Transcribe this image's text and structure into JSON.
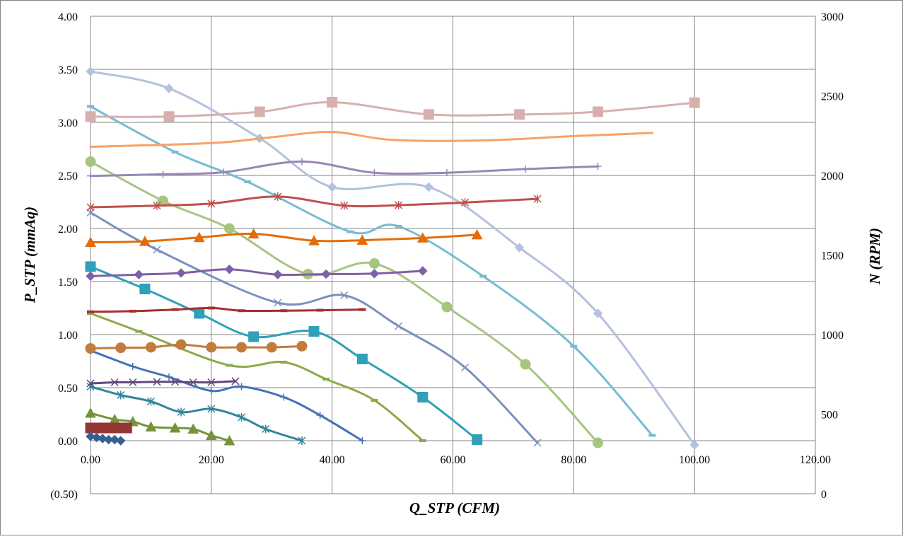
{
  "chart_data": {
    "type": "scatter",
    "xlabel": "Q_STP (CFM)",
    "ylabel": "P_STP (mmAq)",
    "y2label": "N (RPM)",
    "xlim": [
      0,
      120
    ],
    "ylim": [
      -0.5,
      4.0
    ],
    "y2lim": [
      0,
      3000
    ],
    "grid": true,
    "legend": "none",
    "x_ticks": [
      "0.00",
      "20.00",
      "40.00",
      "60.00",
      "80.00",
      "100.00",
      "120.00"
    ],
    "y_ticks": [
      "4.00",
      "3.50",
      "3.00",
      "2.50",
      "2.00",
      "1.50",
      "1.00",
      "0.50",
      "0.00",
      "(0.50)"
    ],
    "y2_ticks": [
      "3000",
      "2500",
      "2000",
      "1500",
      "1000",
      "500",
      "0"
    ],
    "series": [
      {
        "axis": "left",
        "color": "#b3c2dd",
        "marker": "diamond",
        "points": [
          [
            0,
            3.48
          ],
          [
            13,
            3.32
          ],
          [
            28,
            2.85
          ],
          [
            40,
            2.39
          ],
          [
            56,
            2.39
          ],
          [
            71,
            1.82
          ],
          [
            84,
            1.2
          ],
          [
            100,
            -0.04
          ]
        ]
      },
      {
        "axis": "left",
        "color": "#78bcd0",
        "marker": "dash",
        "points": [
          [
            0,
            3.15
          ],
          [
            14,
            2.72
          ],
          [
            26,
            2.44
          ],
          [
            43,
            1.97
          ],
          [
            51,
            2.02
          ],
          [
            65,
            1.55
          ],
          [
            80,
            0.89
          ],
          [
            93,
            0.05
          ]
        ]
      },
      {
        "axis": "left",
        "color": "#a8c57f",
        "marker": "circle",
        "points": [
          [
            0,
            2.63
          ],
          [
            12,
            2.26
          ],
          [
            23,
            2.0
          ],
          [
            36,
            1.57
          ],
          [
            47,
            1.67
          ],
          [
            59,
            1.26
          ],
          [
            72,
            0.72
          ],
          [
            84,
            -0.02
          ]
        ]
      },
      {
        "axis": "left",
        "color": "#7891bf",
        "marker": "x",
        "points": [
          [
            0,
            2.15
          ],
          [
            11,
            1.8
          ],
          [
            31,
            1.3
          ],
          [
            42,
            1.37
          ],
          [
            51,
            1.08
          ],
          [
            62,
            0.69
          ],
          [
            74,
            -0.02
          ]
        ]
      },
      {
        "axis": "left",
        "color": "#2fa0b8",
        "marker": "square",
        "points": [
          [
            0,
            1.64
          ],
          [
            9,
            1.43
          ],
          [
            18,
            1.2
          ],
          [
            27,
            0.98
          ],
          [
            37,
            1.03
          ],
          [
            45,
            0.77
          ],
          [
            55,
            0.41
          ],
          [
            64,
            0.01
          ]
        ]
      },
      {
        "axis": "left",
        "color": "#8caa4a",
        "marker": "dash",
        "points": [
          [
            0,
            1.2
          ],
          [
            8,
            1.03
          ],
          [
            23,
            0.71
          ],
          [
            32,
            0.74
          ],
          [
            39,
            0.58
          ],
          [
            47,
            0.38
          ],
          [
            55,
            0.0
          ]
        ]
      },
      {
        "axis": "left",
        "color": "#4472b8",
        "marker": "plus",
        "points": [
          [
            0,
            0.85
          ],
          [
            7,
            0.7
          ],
          [
            13,
            0.6
          ],
          [
            20,
            0.47
          ],
          [
            25,
            0.51
          ],
          [
            32,
            0.41
          ],
          [
            38,
            0.24
          ],
          [
            45,
            0.0
          ]
        ]
      },
      {
        "axis": "left",
        "color": "#31859b",
        "marker": "star",
        "points": [
          [
            0,
            0.51
          ],
          [
            5,
            0.43
          ],
          [
            10,
            0.37
          ],
          [
            15,
            0.27
          ],
          [
            20,
            0.3
          ],
          [
            25,
            0.22
          ],
          [
            29,
            0.11
          ],
          [
            35,
            0.0
          ]
        ]
      },
      {
        "axis": "left",
        "color": "#76933c",
        "marker": "triangle",
        "points": [
          [
            0,
            0.26
          ],
          [
            4,
            0.2
          ],
          [
            7,
            0.18
          ],
          [
            10,
            0.13
          ],
          [
            14,
            0.12
          ],
          [
            17,
            0.11
          ],
          [
            20,
            0.05
          ],
          [
            23,
            0.0
          ]
        ]
      },
      {
        "axis": "left",
        "color": "#953735",
        "marker": "square",
        "points": [
          [
            0,
            0.12
          ],
          [
            1,
            0.12
          ],
          [
            2,
            0.12
          ],
          [
            3,
            0.12
          ],
          [
            4,
            0.12
          ],
          [
            5,
            0.12
          ],
          [
            6,
            0.12
          ]
        ]
      },
      {
        "axis": "left",
        "color": "#376092",
        "marker": "diamond",
        "points": [
          [
            0,
            0.04
          ],
          [
            1,
            0.03
          ],
          [
            2,
            0.02
          ],
          [
            3,
            0.01
          ],
          [
            4,
            0.01
          ],
          [
            5,
            0.0
          ]
        ]
      },
      {
        "axis": "right",
        "color": "#d7b0ae",
        "marker": "square",
        "points": [
          [
            0,
            2370
          ],
          [
            13,
            2370
          ],
          [
            28,
            2400
          ],
          [
            40,
            2460
          ],
          [
            56,
            2383
          ],
          [
            71,
            2383
          ],
          [
            84,
            2400
          ],
          [
            100,
            2457
          ]
        ]
      },
      {
        "axis": "right",
        "color": "#f8a265",
        "marker": "none",
        "points": [
          [
            0,
            2180
          ],
          [
            20,
            2203
          ],
          [
            30,
            2240
          ],
          [
            40,
            2273
          ],
          [
            50,
            2223
          ],
          [
            65,
            2220
          ],
          [
            80,
            2247
          ],
          [
            93,
            2267
          ]
        ]
      },
      {
        "axis": "right",
        "color": "#9a86b8",
        "marker": "plus",
        "points": [
          [
            0,
            1997
          ],
          [
            12,
            2007
          ],
          [
            22,
            2020
          ],
          [
            35,
            2087
          ],
          [
            47,
            2017
          ],
          [
            59,
            2017
          ],
          [
            72,
            2040
          ],
          [
            84,
            2057
          ]
        ]
      },
      {
        "axis": "right",
        "color": "#c0504d",
        "marker": "star",
        "points": [
          [
            0,
            1800
          ],
          [
            11,
            1810
          ],
          [
            20,
            1823
          ],
          [
            31,
            1867
          ],
          [
            42,
            1810
          ],
          [
            51,
            1813
          ],
          [
            62,
            1830
          ],
          [
            74,
            1853
          ]
        ]
      },
      {
        "axis": "right",
        "color": "#e46c0a",
        "marker": "triangle",
        "points": [
          [
            0,
            1580
          ],
          [
            9,
            1586
          ],
          [
            18,
            1610
          ],
          [
            27,
            1633
          ],
          [
            37,
            1590
          ],
          [
            45,
            1593
          ],
          [
            55,
            1607
          ],
          [
            64,
            1627
          ]
        ]
      },
      {
        "axis": "right",
        "color": "#7f5fa6",
        "marker": "diamond",
        "points": [
          [
            0,
            1367
          ],
          [
            8,
            1377
          ],
          [
            15,
            1387
          ],
          [
            23,
            1410
          ],
          [
            31,
            1377
          ],
          [
            39,
            1380
          ],
          [
            47,
            1383
          ],
          [
            55,
            1400
          ]
        ]
      },
      {
        "axis": "right",
        "color": "#a5302d",
        "marker": "dash",
        "points": [
          [
            0,
            1143
          ],
          [
            7,
            1147
          ],
          [
            14,
            1157
          ],
          [
            20,
            1167
          ],
          [
            25,
            1150
          ],
          [
            32,
            1150
          ],
          [
            38,
            1153
          ],
          [
            45,
            1157
          ]
        ]
      },
      {
        "axis": "right",
        "color": "#c07c3c",
        "marker": "circle",
        "points": [
          [
            0,
            913
          ],
          [
            5,
            917
          ],
          [
            10,
            920
          ],
          [
            15,
            937
          ],
          [
            20,
            920
          ],
          [
            25,
            920
          ],
          [
            30,
            920
          ],
          [
            35,
            927
          ]
        ]
      },
      {
        "axis": "right",
        "color": "#60497b",
        "marker": "x",
        "points": [
          [
            0,
            693
          ],
          [
            4,
            700
          ],
          [
            7,
            700
          ],
          [
            11,
            703
          ],
          [
            14,
            703
          ],
          [
            17,
            700
          ],
          [
            20,
            700
          ],
          [
            24,
            707
          ]
        ]
      }
    ]
  }
}
